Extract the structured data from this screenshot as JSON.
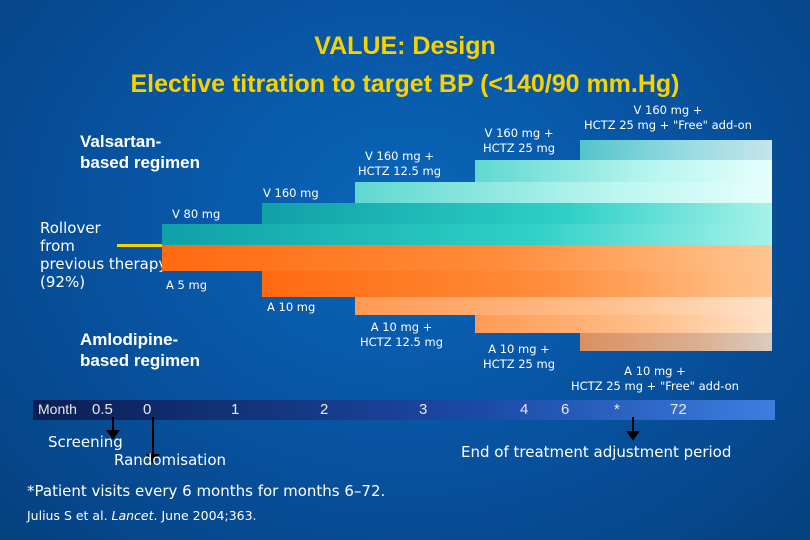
{
  "title": {
    "line1": "VALUE: Design",
    "line2": "Elective titration to target BP (<140/90 mm.Hg)"
  },
  "regimens": {
    "valsartan": "Valsartan-\nbased regimen",
    "amlodipine": "Amlodipine-\nbased regimen",
    "rollover": "Rollover\nfrom\nprevious therapy\n(92%)"
  },
  "steps": {
    "v80": "V 80 mg",
    "v160": "V 160 mg",
    "v160_h125": "V 160 mg +\nHCTZ 12.5 mg",
    "v160_h25": "V 160 mg +\nHCTZ 25 mg",
    "v160_h25_free": "V 160 mg +\nHCTZ 25 mg + \"Free\" add-on",
    "a5": "A 5 mg",
    "a10": "A 10 mg",
    "a10_h125": "A 10 mg +\nHCTZ 12.5 mg",
    "a10_h25": "A 10 mg +\nHCTZ 25 mg",
    "a10_h25_free": "A 10 mg +\nHCTZ 25 mg + \"Free\" add-on"
  },
  "timeline": {
    "month_label": "Month",
    "ticks": [
      "0.5",
      "0",
      "1",
      "2",
      "3",
      "4",
      "6",
      "*",
      "72"
    ],
    "screening": "Screening",
    "randomisation": "Randomisation",
    "end_adjustment": "End of treatment adjustment period"
  },
  "footnote": "*Patient visits every 6 months for months 6–72.",
  "reference": {
    "prefix": "Julius S et al. ",
    "journal": "Lancet",
    "suffix": ". June 2004;363."
  },
  "colors": {
    "title": "#f6d200",
    "valsartan_bar": "#2fd0c6",
    "amlodipine_bar": "#ff7a25",
    "background": "#0855a4"
  }
}
